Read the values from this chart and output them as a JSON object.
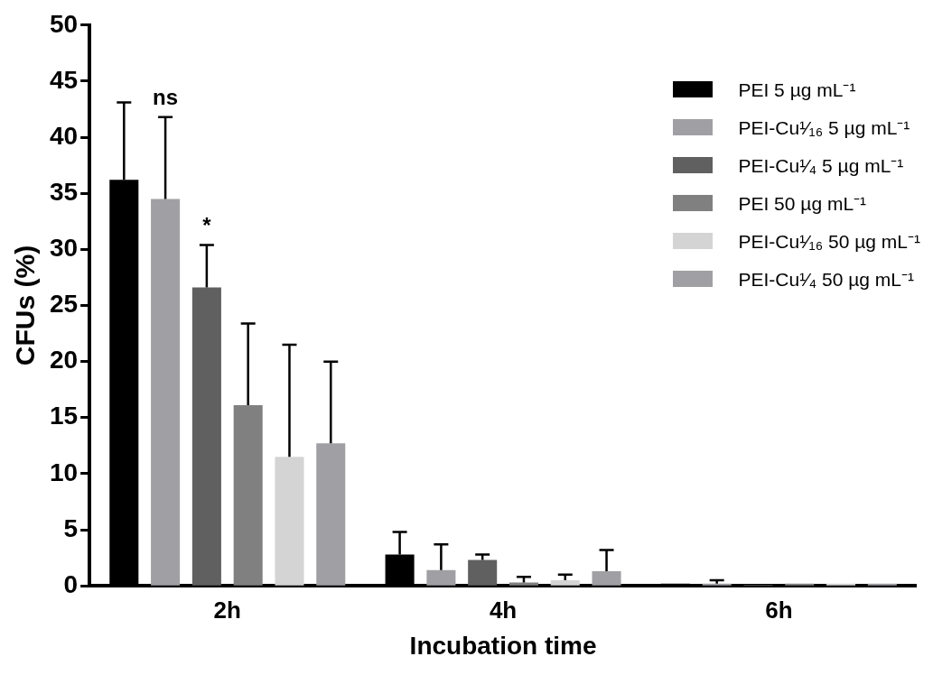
{
  "chart_data": {
    "type": "bar",
    "xlabel": "Incubation time",
    "ylabel": "CFUs (%)",
    "categories": [
      "2h",
      "4h",
      "6h"
    ],
    "series": [
      {
        "name": "PEI 5 µg mL⁻¹",
        "color": "#000000",
        "values": [
          36.2,
          2.8,
          0.2
        ],
        "errors": [
          6.9,
          2.0,
          null
        ]
      },
      {
        "name": "PEI-Cu¹⁄₁₆ 5 µg mL⁻¹",
        "color": "#a0a0a4",
        "values": [
          34.5,
          1.4,
          0.2
        ],
        "errors": [
          7.3,
          2.3,
          0.3
        ]
      },
      {
        "name": "PEI-Cu¹⁄₄  5 µg mL⁻¹",
        "color": "#606060",
        "values": [
          26.6,
          2.3,
          0.1
        ],
        "errors": [
          3.8,
          0.5,
          null
        ]
      },
      {
        "name": "PEI 50 µg mL⁻¹",
        "color": "#808080",
        "values": [
          16.1,
          0.3,
          0.2
        ],
        "errors": [
          7.3,
          0.5,
          null
        ]
      },
      {
        "name": "PEI-Cu¹⁄₁₆ 50 µg mL⁻¹",
        "color": "#d4d4d4",
        "values": [
          11.5,
          0.5,
          0.2
        ],
        "errors": [
          10.0,
          0.5,
          null
        ]
      },
      {
        "name": "PEI-Cu¹⁄₄  50 µg mL⁻¹",
        "color": "#a0a0a4",
        "values": [
          12.7,
          1.3,
          0.2
        ],
        "errors": [
          7.3,
          1.9,
          null
        ]
      }
    ],
    "ylim": [
      0,
      50
    ],
    "yticks": [
      0,
      5,
      10,
      15,
      20,
      25,
      30,
      35,
      40,
      45,
      50
    ],
    "grid": false,
    "legend": "top right",
    "annotations": [
      "ns",
      "*"
    ]
  }
}
